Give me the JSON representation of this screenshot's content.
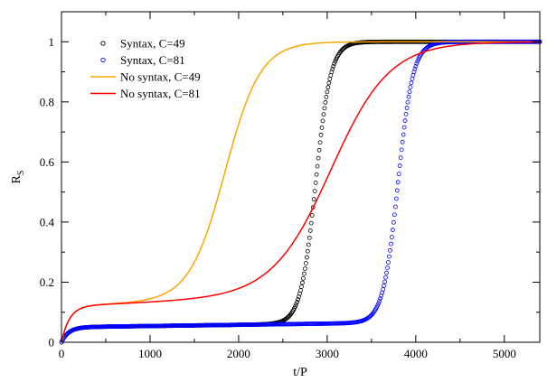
{
  "chart_data": {
    "type": "line",
    "xlabel": "t/P",
    "ylabel": "R",
    "ylabel_sub": "S",
    "xlim": [
      0,
      5400
    ],
    "ylim": [
      0,
      1.1
    ],
    "xticks": [
      0,
      1000,
      2000,
      3000,
      4000,
      5000
    ],
    "yticks": [
      0,
      0.2,
      0.4,
      0.6,
      0.8,
      1
    ],
    "xtick_labels": [
      "0",
      "1000",
      "2000",
      "3000",
      "4000",
      "5000"
    ],
    "ytick_labels": [
      "0",
      "0.2",
      "0.4",
      "0.6",
      "0.8",
      "1"
    ],
    "grid": false,
    "legend_position": "top-left",
    "series": [
      {
        "name": "Syntax, C=49",
        "style": "markers",
        "color": "#000000",
        "plateau": 0.05,
        "plateau_onset": 80,
        "plateau_slope": 4e-06,
        "midpoint": 2870,
        "width": 85,
        "final": 1.0,
        "x_end": 5400
      },
      {
        "name": "Syntax, C=81",
        "style": "markers",
        "color": "#0000ff",
        "plateau": 0.05,
        "plateau_onset": 80,
        "plateau_slope": 4e-06,
        "midpoint": 3800,
        "width": 85,
        "final": 1.0,
        "x_end": 5400
      },
      {
        "name": "No syntax, C=49",
        "style": "line",
        "color": "#ffa500",
        "plateau": 0.12,
        "plateau_onset": 90,
        "plateau_slope": 1.25e-05,
        "midpoint": 1850,
        "width": 200,
        "final": 1.0,
        "x_end": 5400
      },
      {
        "name": "No syntax, C=81",
        "style": "line",
        "color": "#ff0000",
        "plateau": 0.12,
        "plateau_onset": 90,
        "plateau_slope": 1.25e-05,
        "midpoint": 3050,
        "width": 330,
        "final": 1.0,
        "x_end": 5400
      }
    ]
  }
}
